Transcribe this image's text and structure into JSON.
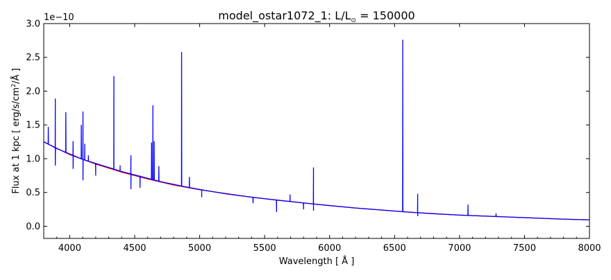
{
  "chart_data": {
    "type": "line",
    "title": "model_ostar1072_1: L/L",
    "title_subscript": "⊙",
    "title_suffix": " = 150000",
    "xlabel": "Wavelength [ Å ]",
    "ylabel_main": "Flux at 1 kpc [ erg/s/cm",
    "ylabel_sup": "2",
    "ylabel_tail": "/Å ]",
    "y_multiplier": "1e−10",
    "xlim": [
      3800,
      8000
    ],
    "ylim": [
      -0.18,
      3.0
    ],
    "grid": false,
    "x_ticks": [
      4000,
      4500,
      5000,
      5500,
      6000,
      6500,
      7000,
      7500,
      8000
    ],
    "x_tick_labels": [
      "4000",
      "4500",
      "5000",
      "5500",
      "6000",
      "6500",
      "7000",
      "7500",
      "8000"
    ],
    "y_ticks": [
      0.0,
      0.5,
      1.0,
      1.5,
      2.0,
      2.5,
      3.0
    ],
    "y_tick_labels": [
      "0.0",
      "0.5",
      "1.0",
      "1.5",
      "2.0",
      "2.5",
      "3.0"
    ],
    "series": [
      {
        "color": "#0000ff",
        "continuum": [
          [
            3800,
            1.25
          ],
          [
            3900,
            1.15
          ],
          [
            4000,
            1.07
          ],
          [
            4100,
            0.99
          ],
          [
            4200,
            0.93
          ],
          [
            4300,
            0.87
          ],
          [
            4400,
            0.81
          ],
          [
            4500,
            0.76
          ],
          [
            4600,
            0.71
          ],
          [
            4700,
            0.66
          ],
          [
            4800,
            0.62
          ],
          [
            4900,
            0.58
          ],
          [
            5000,
            0.545
          ],
          [
            5200,
            0.48
          ],
          [
            5400,
            0.43
          ],
          [
            5600,
            0.385
          ],
          [
            5800,
            0.345
          ],
          [
            6000,
            0.305
          ],
          [
            6200,
            0.27
          ],
          [
            6400,
            0.24
          ],
          [
            6600,
            0.21
          ],
          [
            6800,
            0.185
          ],
          [
            7000,
            0.165
          ],
          [
            7200,
            0.15
          ],
          [
            7400,
            0.135
          ],
          [
            7600,
            0.12
          ],
          [
            7800,
            0.105
          ],
          [
            8000,
            0.095
          ]
        ],
        "emission_lines": [
          [
            3835,
            1.47
          ],
          [
            3889,
            1.89
          ],
          [
            3970,
            1.69
          ],
          [
            4026,
            1.26
          ],
          [
            4089,
            1.5
          ],
          [
            4102,
            1.7
          ],
          [
            4116,
            1.22
          ],
          [
            4144,
            1.05
          ],
          [
            4340,
            2.22
          ],
          [
            4388,
            0.9
          ],
          [
            4471,
            1.05
          ],
          [
            4541,
            0.75
          ],
          [
            4630,
            1.24
          ],
          [
            4640,
            1.79
          ],
          [
            4650,
            1.26
          ],
          [
            4686,
            0.89
          ],
          [
            4861,
            2.58
          ],
          [
            4921,
            0.73
          ],
          [
            5016,
            0.53
          ],
          [
            5696,
            0.47
          ],
          [
            5876,
            0.87
          ],
          [
            6563,
            2.76
          ],
          [
            6678,
            0.48
          ],
          [
            7065,
            0.32
          ],
          [
            7281,
            0.19
          ]
        ],
        "absorption_lines": [
          [
            3889,
            0.9
          ],
          [
            4026,
            0.85
          ],
          [
            4102,
            0.68
          ],
          [
            4200,
            0.75
          ],
          [
            4471,
            0.55
          ],
          [
            4541,
            0.57
          ],
          [
            5016,
            0.43
          ],
          [
            5411,
            0.34
          ],
          [
            5592,
            0.21
          ],
          [
            5800,
            0.25
          ],
          [
            5876,
            0.23
          ],
          [
            6678,
            0.15
          ]
        ]
      },
      {
        "color": "#ff0000",
        "continuum": [
          [
            3800,
            1.25
          ],
          [
            4000,
            1.06
          ],
          [
            4200,
            0.92
          ],
          [
            4400,
            0.8
          ],
          [
            4600,
            0.7
          ],
          [
            4800,
            0.61
          ],
          [
            5000,
            0.54
          ],
          [
            5400,
            0.43
          ],
          [
            5800,
            0.345
          ],
          [
            6200,
            0.27
          ],
          [
            6600,
            0.21
          ],
          [
            7000,
            0.165
          ],
          [
            7400,
            0.135
          ],
          [
            7800,
            0.105
          ],
          [
            8000,
            0.095
          ]
        ]
      }
    ]
  }
}
